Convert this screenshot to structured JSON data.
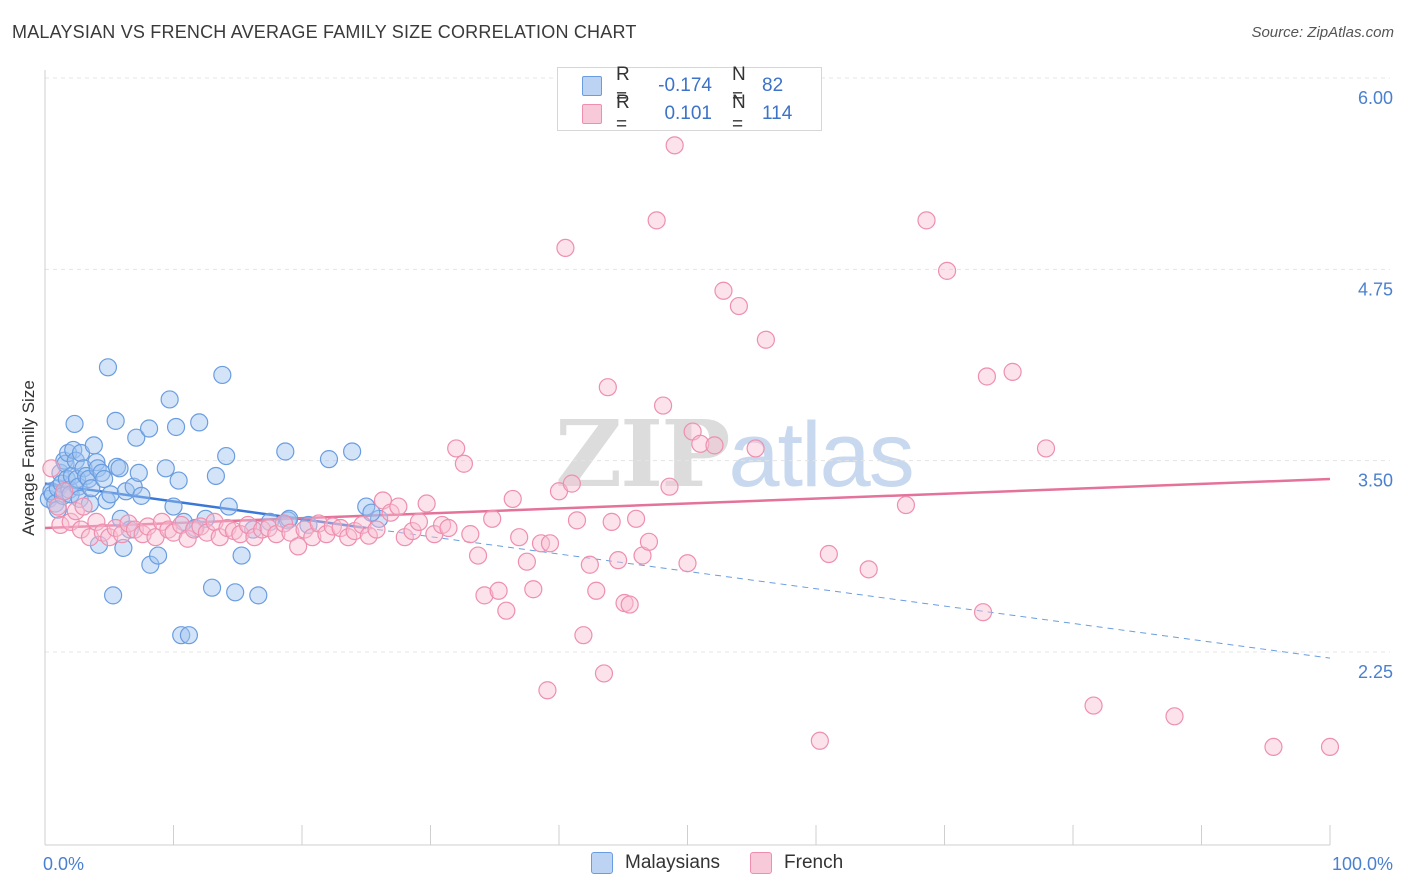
{
  "header": {
    "title": "MALAYSIAN VS FRENCH AVERAGE FAMILY SIZE CORRELATION CHART",
    "source": "Source: ZipAtlas.com"
  },
  "watermark": {
    "part1": "ZIP",
    "part2": "atlas"
  },
  "legend": {
    "rows": [
      {
        "r_label": "R =",
        "r_value": "-0.174",
        "n_label": "N =",
        "n_value": "82",
        "color": "#6a9de0"
      },
      {
        "r_label": "R =",
        "r_value": "0.101",
        "n_label": "N =",
        "n_value": "114",
        "color": "#ee8fae"
      }
    ],
    "bottom": [
      {
        "label": "Malaysians",
        "color": "#6a9de0"
      },
      {
        "label": "French",
        "color": "#ee8fae"
      }
    ]
  },
  "chart_data": {
    "type": "scatter",
    "title": "MALAYSIAN VS FRENCH AVERAGE FAMILY SIZE CORRELATION CHART",
    "xlabel": "",
    "ylabel": "Average Family Size",
    "xlim": [
      0,
      100
    ],
    "ylim": [
      1.25,
      6.2
    ],
    "x_tick_labels": [
      "0.0%",
      "100.0%"
    ],
    "y_ticks": [
      2.25,
      3.5,
      4.75,
      6.0
    ],
    "y_tick_labels": [
      "2.25",
      "3.50",
      "4.75",
      "6.00"
    ],
    "series": [
      {
        "name": "Malaysians",
        "color": "#6a9de0",
        "trend": {
          "x0": 0,
          "y0": 3.35,
          "x1": 25,
          "y1": 3.06,
          "dashed_to_x": 100,
          "dashed_to_y": 2.21
        },
        "points": [
          [
            0.3,
            3.25
          ],
          [
            0.5,
            3.3
          ],
          [
            0.6,
            3.28
          ],
          [
            0.8,
            3.22
          ],
          [
            1.0,
            3.32
          ],
          [
            1.0,
            3.18
          ],
          [
            1.2,
            3.42
          ],
          [
            1.3,
            3.35
          ],
          [
            1.4,
            3.27
          ],
          [
            1.5,
            3.5
          ],
          [
            1.6,
            3.48
          ],
          [
            1.7,
            3.38
          ],
          [
            1.8,
            3.55
          ],
          [
            1.9,
            3.31
          ],
          [
            2.0,
            3.28
          ],
          [
            2.1,
            3.4
          ],
          [
            2.2,
            3.57
          ],
          [
            2.3,
            3.74
          ],
          [
            2.4,
            3.5
          ],
          [
            2.5,
            3.38
          ],
          [
            2.6,
            3.33
          ],
          [
            2.7,
            3.25
          ],
          [
            2.8,
            3.55
          ],
          [
            3.0,
            3.45
          ],
          [
            3.2,
            3.4
          ],
          [
            3.4,
            3.38
          ],
          [
            3.5,
            3.22
          ],
          [
            3.6,
            3.32
          ],
          [
            3.8,
            3.6
          ],
          [
            4.0,
            3.49
          ],
          [
            4.1,
            3.45
          ],
          [
            4.2,
            2.95
          ],
          [
            4.4,
            3.42
          ],
          [
            4.6,
            3.38
          ],
          [
            4.8,
            3.24
          ],
          [
            4.9,
            4.11
          ],
          [
            5.1,
            3.28
          ],
          [
            5.3,
            2.62
          ],
          [
            5.5,
            3.76
          ],
          [
            5.6,
            3.46
          ],
          [
            5.8,
            3.45
          ],
          [
            5.9,
            3.12
          ],
          [
            6.1,
            2.93
          ],
          [
            6.3,
            3.3
          ],
          [
            6.6,
            3.05
          ],
          [
            6.9,
            3.33
          ],
          [
            7.1,
            3.65
          ],
          [
            7.3,
            3.42
          ],
          [
            7.5,
            3.27
          ],
          [
            8.1,
            3.71
          ],
          [
            8.2,
            2.82
          ],
          [
            8.8,
            2.88
          ],
          [
            9.4,
            3.45
          ],
          [
            9.7,
            3.9
          ],
          [
            10.0,
            3.2
          ],
          [
            10.2,
            3.72
          ],
          [
            10.4,
            3.37
          ],
          [
            10.6,
            2.36
          ],
          [
            10.8,
            3.1
          ],
          [
            11.2,
            2.36
          ],
          [
            11.7,
            3.06
          ],
          [
            12.0,
            3.75
          ],
          [
            12.5,
            3.12
          ],
          [
            13.0,
            2.67
          ],
          [
            13.3,
            3.4
          ],
          [
            13.8,
            4.06
          ],
          [
            14.1,
            3.53
          ],
          [
            14.3,
            3.2
          ],
          [
            14.8,
            2.64
          ],
          [
            15.3,
            2.88
          ],
          [
            16.2,
            3.05
          ],
          [
            16.6,
            2.62
          ],
          [
            17.5,
            3.1
          ],
          [
            18.7,
            3.56
          ],
          [
            18.9,
            3.11
          ],
          [
            19.0,
            3.12
          ],
          [
            20.5,
            3.08
          ],
          [
            22.1,
            3.51
          ],
          [
            23.9,
            3.56
          ],
          [
            25.0,
            3.2
          ],
          [
            26.0,
            3.12
          ],
          [
            25.4,
            3.16
          ]
        ]
      },
      {
        "name": "French",
        "color": "#ee8fae",
        "trend": {
          "x0": 0,
          "y0": 3.06,
          "x1": 100,
          "y1": 3.38
        },
        "points": [
          [
            0.5,
            3.45
          ],
          [
            1.0,
            3.2
          ],
          [
            1.2,
            3.08
          ],
          [
            1.5,
            3.3
          ],
          [
            2.0,
            3.1
          ],
          [
            2.4,
            3.17
          ],
          [
            2.8,
            3.05
          ],
          [
            3.0,
            3.2
          ],
          [
            3.5,
            3.0
          ],
          [
            4.0,
            3.1
          ],
          [
            4.5,
            3.03
          ],
          [
            5.0,
            3.0
          ],
          [
            5.5,
            3.06
          ],
          [
            6.0,
            3.02
          ],
          [
            6.5,
            3.09
          ],
          [
            7.0,
            3.05
          ],
          [
            7.6,
            3.02
          ],
          [
            8.0,
            3.07
          ],
          [
            8.6,
            3.0
          ],
          [
            9.1,
            3.1
          ],
          [
            9.6,
            3.05
          ],
          [
            10.0,
            3.03
          ],
          [
            10.6,
            3.08
          ],
          [
            11.1,
            2.99
          ],
          [
            11.6,
            3.05
          ],
          [
            12.1,
            3.07
          ],
          [
            12.6,
            3.03
          ],
          [
            13.2,
            3.1
          ],
          [
            13.6,
            3.0
          ],
          [
            14.2,
            3.06
          ],
          [
            14.7,
            3.04
          ],
          [
            15.2,
            3.02
          ],
          [
            15.8,
            3.08
          ],
          [
            16.3,
            3.0
          ],
          [
            16.9,
            3.05
          ],
          [
            17.4,
            3.06
          ],
          [
            18.0,
            3.02
          ],
          [
            18.6,
            3.09
          ],
          [
            19.1,
            3.03
          ],
          [
            19.7,
            2.94
          ],
          [
            20.2,
            3.05
          ],
          [
            20.8,
            3.0
          ],
          [
            21.3,
            3.09
          ],
          [
            21.9,
            3.02
          ],
          [
            22.4,
            3.07
          ],
          [
            23.0,
            3.06
          ],
          [
            23.6,
            3.0
          ],
          [
            24.1,
            3.04
          ],
          [
            24.7,
            3.08
          ],
          [
            25.2,
            3.01
          ],
          [
            25.8,
            3.05
          ],
          [
            26.3,
            3.24
          ],
          [
            26.9,
            3.16
          ],
          [
            27.5,
            3.2
          ],
          [
            28.0,
            3.0
          ],
          [
            28.6,
            3.04
          ],
          [
            29.1,
            3.1
          ],
          [
            29.7,
            3.22
          ],
          [
            30.3,
            3.02
          ],
          [
            30.9,
            3.08
          ],
          [
            31.4,
            3.06
          ],
          [
            32.0,
            3.58
          ],
          [
            32.6,
            3.48
          ],
          [
            33.1,
            3.02
          ],
          [
            33.7,
            2.88
          ],
          [
            34.2,
            2.62
          ],
          [
            34.8,
            3.12
          ],
          [
            35.3,
            2.65
          ],
          [
            35.9,
            2.52
          ],
          [
            36.4,
            3.25
          ],
          [
            36.9,
            3.0
          ],
          [
            37.5,
            2.84
          ],
          [
            38.0,
            2.66
          ],
          [
            38.6,
            2.96
          ],
          [
            39.1,
            2.0
          ],
          [
            39.3,
            2.96
          ],
          [
            40.0,
            3.3
          ],
          [
            40.5,
            4.89
          ],
          [
            41.0,
            3.35
          ],
          [
            41.4,
            3.11
          ],
          [
            41.9,
            2.36
          ],
          [
            42.4,
            2.82
          ],
          [
            42.9,
            2.65
          ],
          [
            43.5,
            2.11
          ],
          [
            43.8,
            3.98
          ],
          [
            44.1,
            3.1
          ],
          [
            44.6,
            2.85
          ],
          [
            45.1,
            2.57
          ],
          [
            45.5,
            2.56
          ],
          [
            46.0,
            3.12
          ],
          [
            46.5,
            2.88
          ],
          [
            47.0,
            2.97
          ],
          [
            47.6,
            5.07
          ],
          [
            48.1,
            3.86
          ],
          [
            48.6,
            3.33
          ],
          [
            49.0,
            5.56
          ],
          [
            50.0,
            2.83
          ],
          [
            50.4,
            3.69
          ],
          [
            51.0,
            3.61
          ],
          [
            52.1,
            3.6
          ],
          [
            52.8,
            4.61
          ],
          [
            54.0,
            4.51
          ],
          [
            55.3,
            3.58
          ],
          [
            56.1,
            4.29
          ],
          [
            60.3,
            1.67
          ],
          [
            61.0,
            2.89
          ],
          [
            64.1,
            2.79
          ],
          [
            67.0,
            3.21
          ],
          [
            68.6,
            5.07
          ],
          [
            70.2,
            4.74
          ],
          [
            73.0,
            2.51
          ],
          [
            73.3,
            4.05
          ],
          [
            75.3,
            4.08
          ],
          [
            77.9,
            3.58
          ],
          [
            81.6,
            1.9
          ],
          [
            87.9,
            1.83
          ],
          [
            95.6,
            1.63
          ],
          [
            100.0,
            1.63
          ]
        ]
      }
    ]
  }
}
